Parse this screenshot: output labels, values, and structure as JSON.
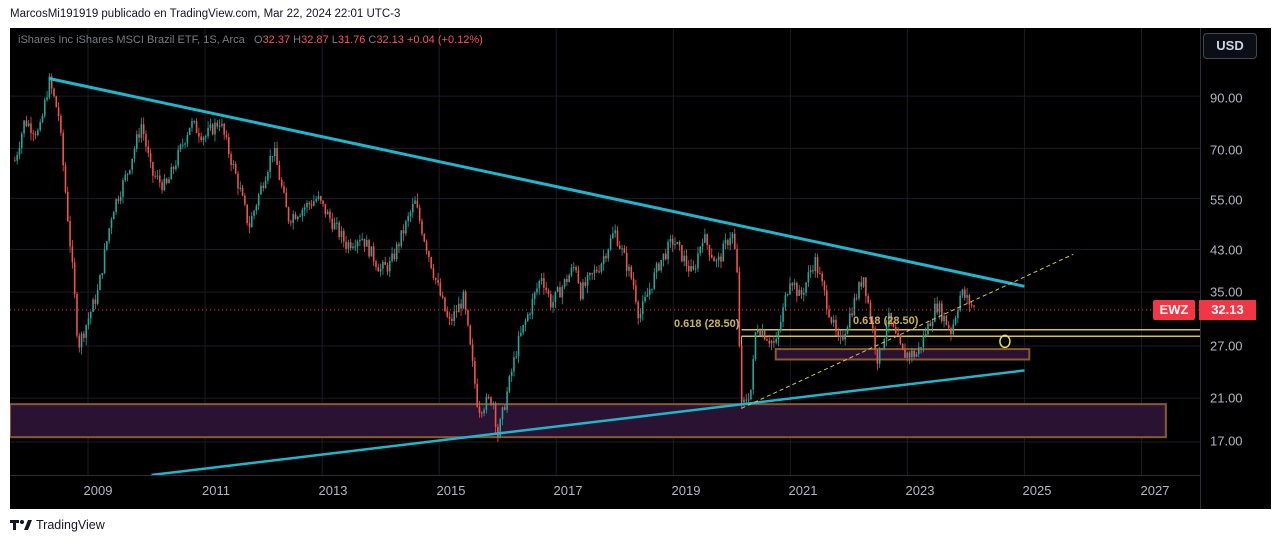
{
  "header": {
    "publisher": "MarcosMi191919 publicado en TradingView.com, Mar 22, 2024 22:01 UTC-3"
  },
  "legend": {
    "instrument": "iShares Inc iShares MSCI Brazil ETF, 1S, Arca",
    "open_label": "O",
    "open": "32.37",
    "high_label": "H",
    "high": "32.87",
    "low_label": "L",
    "low": "31.76",
    "close_label": "C",
    "close": "32.13",
    "change": "+0.04 (+0.12%)"
  },
  "price_axis": {
    "currency": "USD",
    "ticks": [
      "90.00",
      "70.00",
      "55.00",
      "43.00",
      "35.00",
      "27.00",
      "21.00",
      "17.00"
    ]
  },
  "current_price": {
    "symbol": "EWZ",
    "value": "32.13"
  },
  "fib_labels": [
    "0.618 (28.50)",
    "0.618 (28.50)"
  ],
  "footer": {
    "brand": "TradingView"
  },
  "colors": {
    "up_candle": "#26a69a",
    "down_candle": "#ef5350",
    "trendline": "#1fb6cc",
    "fib": "#d4c252",
    "zone_fill": "#2a1233",
    "zone_border": "#8a5a2b",
    "price_line": "#f23645"
  },
  "chart_data": {
    "type": "candlestick",
    "symbol": "EWZ",
    "timeframe": "1S",
    "y_scale": "log",
    "ylim": [
      14.5,
      125
    ],
    "xlim": [
      "2007-09",
      "2028-01"
    ],
    "x_ticks": [
      "2009",
      "2011",
      "2013",
      "2015",
      "2017",
      "2019",
      "2021",
      "2023",
      "2025",
      "2027"
    ],
    "y_ticks": [
      90,
      70,
      55,
      43,
      35,
      27,
      21,
      17
    ],
    "last_close": 32.13,
    "price_path": [
      {
        "t": "2007-10",
        "p": 66
      },
      {
        "t": "2007-12",
        "p": 80
      },
      {
        "t": "2008-03",
        "p": 75
      },
      {
        "t": "2008-05",
        "p": 97
      },
      {
        "t": "2008-07",
        "p": 82
      },
      {
        "t": "2008-10",
        "p": 37
      },
      {
        "t": "2008-11",
        "p": 27
      },
      {
        "t": "2009-03",
        "p": 35
      },
      {
        "t": "2009-06",
        "p": 52
      },
      {
        "t": "2009-09",
        "p": 62
      },
      {
        "t": "2009-12",
        "p": 79
      },
      {
        "t": "2010-02",
        "p": 62
      },
      {
        "t": "2010-05",
        "p": 58
      },
      {
        "t": "2010-10",
        "p": 79
      },
      {
        "t": "2011-01",
        "p": 74
      },
      {
        "t": "2011-04",
        "p": 80
      },
      {
        "t": "2011-08",
        "p": 58
      },
      {
        "t": "2011-10",
        "p": 48
      },
      {
        "t": "2012-03",
        "p": 70
      },
      {
        "t": "2012-06",
        "p": 50
      },
      {
        "t": "2012-12",
        "p": 55
      },
      {
        "t": "2013-06",
        "p": 44
      },
      {
        "t": "2013-09",
        "p": 46
      },
      {
        "t": "2014-01",
        "p": 39
      },
      {
        "t": "2014-03",
        "p": 40
      },
      {
        "t": "2014-08",
        "p": 54
      },
      {
        "t": "2014-12",
        "p": 38
      },
      {
        "t": "2015-03",
        "p": 30
      },
      {
        "t": "2015-06",
        "p": 34
      },
      {
        "t": "2015-09",
        "p": 20
      },
      {
        "t": "2015-12",
        "p": 21
      },
      {
        "t": "2016-01",
        "p": 17.5
      },
      {
        "t": "2016-05",
        "p": 27
      },
      {
        "t": "2016-10",
        "p": 38
      },
      {
        "t": "2016-12",
        "p": 33
      },
      {
        "t": "2017-05",
        "p": 40
      },
      {
        "t": "2017-06",
        "p": 35
      },
      {
        "t": "2017-10",
        "p": 40
      },
      {
        "t": "2018-01",
        "p": 47
      },
      {
        "t": "2018-05",
        "p": 36
      },
      {
        "t": "2018-06",
        "p": 31
      },
      {
        "t": "2018-10",
        "p": 40
      },
      {
        "t": "2019-01",
        "p": 45
      },
      {
        "t": "2019-05",
        "p": 38
      },
      {
        "t": "2019-07",
        "p": 46
      },
      {
        "t": "2019-10",
        "p": 40
      },
      {
        "t": "2020-01",
        "p": 47
      },
      {
        "t": "2020-02",
        "p": 40
      },
      {
        "t": "2020-03",
        "p": 20
      },
      {
        "t": "2020-05",
        "p": 22
      },
      {
        "t": "2020-06",
        "p": 30
      },
      {
        "t": "2020-10",
        "p": 27
      },
      {
        "t": "2021-01",
        "p": 38
      },
      {
        "t": "2021-03",
        "p": 34
      },
      {
        "t": "2021-06",
        "p": 41
      },
      {
        "t": "2021-11",
        "p": 27
      },
      {
        "t": "2022-04",
        "p": 38
      },
      {
        "t": "2022-07",
        "p": 25
      },
      {
        "t": "2022-09",
        "p": 31
      },
      {
        "t": "2022-12",
        "p": 26
      },
      {
        "t": "2023-03",
        "p": 26
      },
      {
        "t": "2023-07",
        "p": 33
      },
      {
        "t": "2023-10",
        "p": 29
      },
      {
        "t": "2023-12",
        "p": 35
      },
      {
        "t": "2024-02",
        "p": 33
      },
      {
        "t": "2024-03",
        "p": 32.13
      }
    ],
    "annotations": {
      "descending_trendline": [
        {
          "t": "2008-05",
          "p": 98
        },
        {
          "t": "2025-01",
          "p": 36
        }
      ],
      "ascending_trendline": [
        {
          "t": "2010-02",
          "p": 14.5
        },
        {
          "t": "2025-01",
          "p": 24
        }
      ],
      "dashed_support": [
        {
          "t": "2020-03",
          "p": 20
        },
        {
          "t": "2025-11",
          "p": 42
        }
      ],
      "fib_0618_level": 28.5,
      "fib_lines": [
        29.2,
        28.3
      ],
      "zone_low_box": {
        "t1": "2007-09",
        "t2": "2027-06",
        "p_low": 17.4,
        "p_high": 20.4
      },
      "zone_mid_box": {
        "t1": "2020-10",
        "t2": "2025-02",
        "p_low": 25.3,
        "p_high": 26.6
      },
      "circle_marker": {
        "t": "2024-09",
        "p": 27.6
      }
    }
  }
}
